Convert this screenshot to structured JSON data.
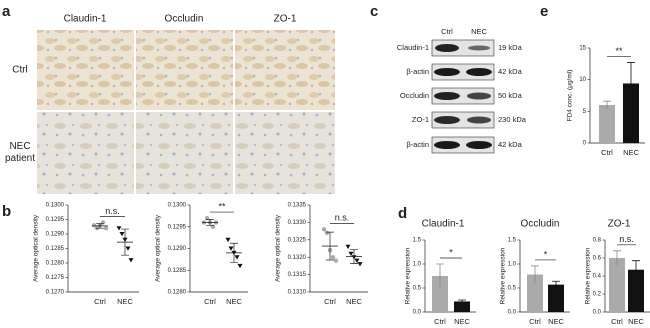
{
  "panel_labels": [
    "a",
    "b",
    "c",
    "d",
    "e"
  ],
  "panel_a": {
    "columns": [
      "Claudin-1",
      "Occludin",
      "ZO-1"
    ],
    "rows": [
      "Ctrl",
      "NEC patient"
    ]
  },
  "panel_c": {
    "groups": [
      "Ctrl",
      "NEC"
    ],
    "rows": [
      {
        "protein": "Claudin-1",
        "size": "19 kDa"
      },
      {
        "protein": "β-actin",
        "size": "42 kDa"
      },
      {
        "protein": "Occludin",
        "size": "50 kDa"
      },
      {
        "protein": "ZO-1",
        "size": "230 kDa"
      },
      {
        "protein": "β-actin",
        "size": "42 kDa"
      }
    ]
  },
  "chart_data": [
    {
      "type": "dot",
      "ylabel": "Average optical density",
      "categories": [
        "Ctrl",
        "NEC"
      ],
      "significance": "n.s.",
      "ylim": [
        0.127,
        0.13
      ],
      "yticks": [
        {
          "value": 0.127,
          "label": "0.1270"
        },
        0.1275,
        {
          "value": 0.128,
          "label": "0.1280"
        },
        0.1285,
        {
          "value": 0.129,
          "label": "0.1290"
        },
        0.1295,
        {
          "value": 0.13,
          "label": "0.1300"
        }
      ],
      "groups": [
        {
          "color": "#aaaaaa",
          "marker": "circle",
          "values": [
            0.1293,
            0.1292,
            0.1293,
            0.1294,
            0.1292
          ],
          "mean": 0.12928,
          "sd": 8e-05
        },
        {
          "color": "#111111",
          "marker": "triangle",
          "values": [
            0.1292,
            0.129,
            0.1288,
            0.1285,
            0.1281
          ],
          "mean": 0.12872,
          "sd": 0.00045
        }
      ]
    },
    {
      "type": "dot",
      "ylabel": "Average optical density",
      "categories": [
        "Ctrl",
        "NEC"
      ],
      "significance": "**",
      "ylim": [
        0.128,
        0.13
      ],
      "yticks": [
        {
          "value": 0.128,
          "label": "0.1280"
        },
        0.1285,
        {
          "value": 0.129,
          "label": "0.1290"
        },
        0.1295,
        {
          "value": 0.13,
          "label": "0.1300"
        }
      ],
      "groups": [
        {
          "color": "#aaaaaa",
          "marker": "circle",
          "values": [
            0.1296,
            0.1297,
            0.1296,
            0.1295,
            0.1296
          ],
          "mean": 0.1296,
          "sd": 7e-05
        },
        {
          "color": "#111111",
          "marker": "triangle",
          "values": [
            0.1292,
            0.129,
            0.1289,
            0.1288,
            0.1286
          ],
          "mean": 0.1289,
          "sd": 0.00022
        }
      ]
    },
    {
      "type": "dot",
      "ylabel": "Average optical density",
      "categories": [
        "Ctrl",
        "NEC"
      ],
      "significance": "n.s.",
      "ylim": [
        0.131,
        0.1335
      ],
      "yticks": [
        {
          "value": 0.131,
          "label": "0.1310"
        },
        0.1315,
        {
          "value": 0.132,
          "label": "0.1320"
        },
        0.1325,
        {
          "value": 0.133,
          "label": "0.1330"
        },
        0.1335
      ],
      "groups": [
        {
          "color": "#aaaaaa",
          "marker": "circle",
          "values": [
            0.1328,
            0.1327,
            0.1322,
            0.132,
            0.1319
          ],
          "mean": 0.13232,
          "sd": 0.0004
        },
        {
          "color": "#111111",
          "marker": "triangle",
          "values": [
            0.1323,
            0.1321,
            0.132,
            0.1319,
            0.1318
          ],
          "mean": 0.13202,
          "sd": 0.0002
        }
      ]
    },
    {
      "type": "bar",
      "title": "Claudin-1",
      "ylabel": "Relative expression",
      "categories": [
        "Ctrl",
        "NEC"
      ],
      "significance": "*",
      "ylim": [
        0,
        1.5
      ],
      "yticks": [
        {
          "value": 0,
          "label": "0.0"
        },
        0.5,
        {
          "value": 1,
          "label": "1.0"
        },
        1.5
      ],
      "values": [
        0.75,
        0.22
      ],
      "errors": [
        0.25,
        0.03
      ],
      "colors": [
        "#aaaaaa",
        "#111111"
      ]
    },
    {
      "type": "bar",
      "title": "Occludin",
      "ylabel": "Relative expression",
      "categories": [
        "Ctrl",
        "NEC"
      ],
      "significance": "*",
      "ylim": [
        0,
        1.5
      ],
      "yticks": [
        {
          "value": 0,
          "label": "0.0"
        },
        0.5,
        {
          "value": 1,
          "label": "1.0"
        },
        1.5
      ],
      "values": [
        0.78,
        0.57
      ],
      "errors": [
        0.18,
        0.07
      ],
      "colors": [
        "#aaaaaa",
        "#111111"
      ]
    },
    {
      "type": "bar",
      "title": "ZO-1",
      "ylabel": "Relative expression",
      "categories": [
        "Ctrl",
        "NEC"
      ],
      "significance": "n.s.",
      "ylim": [
        0,
        0.8
      ],
      "yticks": [
        {
          "value": 0,
          "label": "0.0"
        },
        0.2,
        0.4,
        0.6,
        0.8
      ],
      "values": [
        0.6,
        0.47
      ],
      "errors": [
        0.08,
        0.1
      ],
      "colors": [
        "#aaaaaa",
        "#111111"
      ]
    },
    {
      "type": "bar",
      "ylabel": "FD4 conc. (μg/ml)",
      "categories": [
        "Ctrl",
        "NEC"
      ],
      "significance": "**",
      "ylim": [
        0,
        15
      ],
      "yticks": [
        0,
        5,
        10,
        15
      ],
      "values": [
        6.0,
        9.4
      ],
      "errors": [
        0.6,
        3.3
      ],
      "colors": [
        "#aaaaaa",
        "#111111"
      ]
    }
  ]
}
